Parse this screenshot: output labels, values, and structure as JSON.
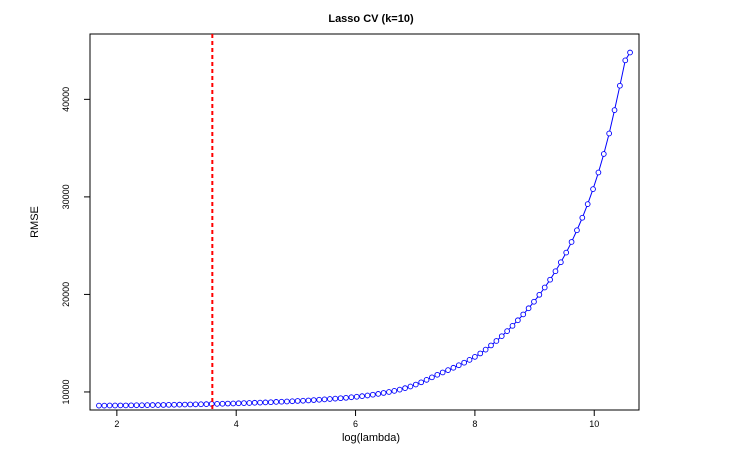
{
  "chart_data": {
    "type": "line",
    "title": "Lasso CV (k=10)",
    "xlabel": "log(lambda)",
    "ylabel": "RMSE",
    "xlim": [
      1.55,
      10.75
    ],
    "ylim": [
      8150,
      46700
    ],
    "xticks": [
      2,
      4,
      6,
      8,
      10
    ],
    "xtick_labels": [
      "2",
      "4",
      "6",
      "8",
      "10"
    ],
    "yticks": [
      10000,
      20000,
      30000,
      40000
    ],
    "ytick_labels": [
      "10000",
      "20000",
      "30000",
      "40000"
    ],
    "grid": false,
    "legend": "none",
    "series": [
      {
        "color": "#0000ff",
        "marker": "open-circle",
        "x": [
          1.7,
          1.79,
          1.88,
          1.97,
          2.06,
          2.15,
          2.24,
          2.33,
          2.42,
          2.51,
          2.6,
          2.69,
          2.78,
          2.87,
          2.96,
          3.05,
          3.14,
          3.23,
          3.32,
          3.41,
          3.5,
          3.59,
          3.68,
          3.77,
          3.86,
          3.95,
          4.04,
          4.13,
          4.22,
          4.31,
          4.4,
          4.49,
          4.58,
          4.67,
          4.76,
          4.85,
          4.94,
          5.03,
          5.12,
          5.21,
          5.3,
          5.39,
          5.48,
          5.57,
          5.66,
          5.75,
          5.84,
          5.93,
          6.02,
          6.11,
          6.2,
          6.29,
          6.38,
          6.47,
          6.56,
          6.65,
          6.74,
          6.83,
          6.92,
          7.01,
          7.1,
          7.19,
          7.28,
          7.37,
          7.46,
          7.55,
          7.64,
          7.73,
          7.82,
          7.91,
          8.0,
          8.09,
          8.18,
          8.27,
          8.36,
          8.45,
          8.54,
          8.63,
          8.72,
          8.81,
          8.9,
          8.99,
          9.08,
          9.17,
          9.26,
          9.35,
          9.44,
          9.53,
          9.62,
          9.71,
          9.8,
          9.89,
          9.98,
          10.07,
          10.16,
          10.25,
          10.34,
          10.43,
          10.52,
          10.6
        ],
        "y": [
          8600,
          8600,
          8610,
          8610,
          8620,
          8620,
          8630,
          8640,
          8640,
          8650,
          8660,
          8660,
          8670,
          8680,
          8690,
          8700,
          8710,
          8720,
          8730,
          8740,
          8750,
          8770,
          8780,
          8790,
          8810,
          8820,
          8840,
          8860,
          8870,
          8890,
          8910,
          8930,
          8950,
          8980,
          9000,
          9020,
          9050,
          9080,
          9100,
          9130,
          9170,
          9200,
          9240,
          9280,
          9320,
          9360,
          9400,
          9460,
          9510,
          9570,
          9640,
          9720,
          9800,
          9900,
          10000,
          10110,
          10240,
          10390,
          10560,
          10760,
          10990,
          11240,
          11500,
          11760,
          12000,
          12240,
          12480,
          12740,
          13000,
          13290,
          13600,
          13950,
          14340,
          14770,
          15230,
          15720,
          16240,
          16780,
          17350,
          17950,
          18580,
          19250,
          19960,
          20710,
          21510,
          22380,
          23300,
          24290,
          25380,
          26580,
          27860,
          29260,
          30800,
          32500,
          34400,
          36500,
          38900,
          41400,
          44000,
          44800
        ]
      }
    ],
    "vline": {
      "x": 3.6,
      "color": "#ff0000",
      "style": "dashed"
    }
  }
}
